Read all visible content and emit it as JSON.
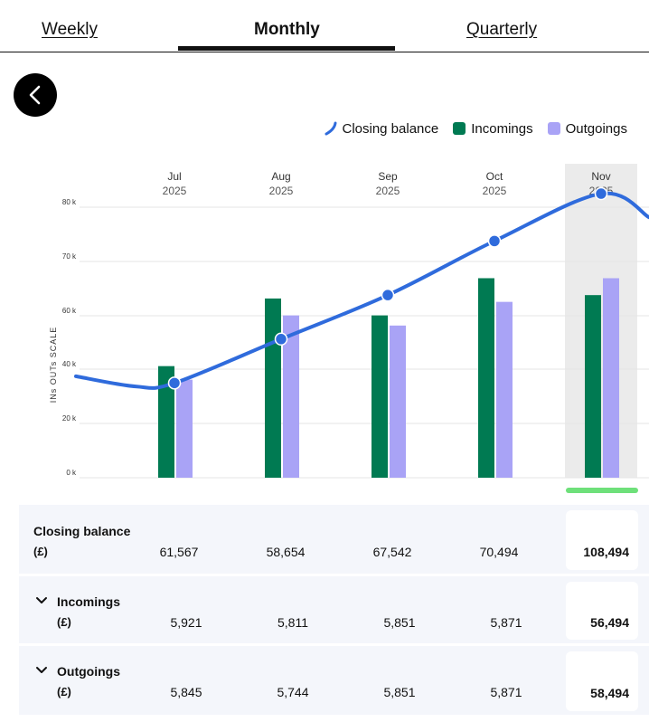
{
  "tabs": [
    {
      "label": "Weekly",
      "active": false
    },
    {
      "label": "Monthly",
      "active": true
    },
    {
      "label": "Quarterly",
      "active": false
    }
  ],
  "back_button": {
    "icon": "chevron-left-icon"
  },
  "legend": {
    "closing_balance": "Closing balance",
    "incomings": "Incomings",
    "outgoings": "Outgoings"
  },
  "colors": {
    "closing_balance": "#2f6bdc",
    "incomings": "#007a52",
    "outgoings": "#a9a3f6",
    "highlight_column": "#ebebeb",
    "current_marker": "#6ee07a"
  },
  "chart_data": {
    "type": "bar",
    "ylabel": "INs OUTs SCALE",
    "ylim": [
      0,
      80
    ],
    "yticks": [
      "0 k",
      "20 k",
      "40 k",
      "60 k",
      "70 k",
      "80 k"
    ],
    "months": [
      {
        "month": "Jul",
        "year": "2025"
      },
      {
        "month": "Aug",
        "year": "2025"
      },
      {
        "month": "Sep",
        "year": "2025"
      },
      {
        "month": "Oct",
        "year": "2025"
      },
      {
        "month": "Nov",
        "year": "2025"
      }
    ],
    "highlighted_index": 4,
    "series": [
      {
        "name": "Incomings",
        "values": [
          33,
          53,
          48,
          59,
          54
        ]
      },
      {
        "name": "Outgoings",
        "values": [
          29,
          48,
          45,
          52,
          59
        ]
      }
    ],
    "closing_balance_points": [
      28,
      41,
      54,
      70,
      84
    ]
  },
  "table": {
    "rows": [
      {
        "label": "Closing balance",
        "unit": "(£)",
        "values": [
          "61,567",
          "58,654",
          "67,542",
          "70,494"
        ],
        "total": "108,494",
        "expandable": false
      },
      {
        "label": "Incomings",
        "unit": "(£)",
        "values": [
          "5,921",
          "5,811",
          "5,851",
          "5,871"
        ],
        "total": "56,494",
        "expandable": true
      },
      {
        "label": "Outgoings",
        "unit": "(£)",
        "values": [
          "5,845",
          "5,744",
          "5,851",
          "5,871"
        ],
        "total": "58,494",
        "expandable": true
      }
    ]
  }
}
